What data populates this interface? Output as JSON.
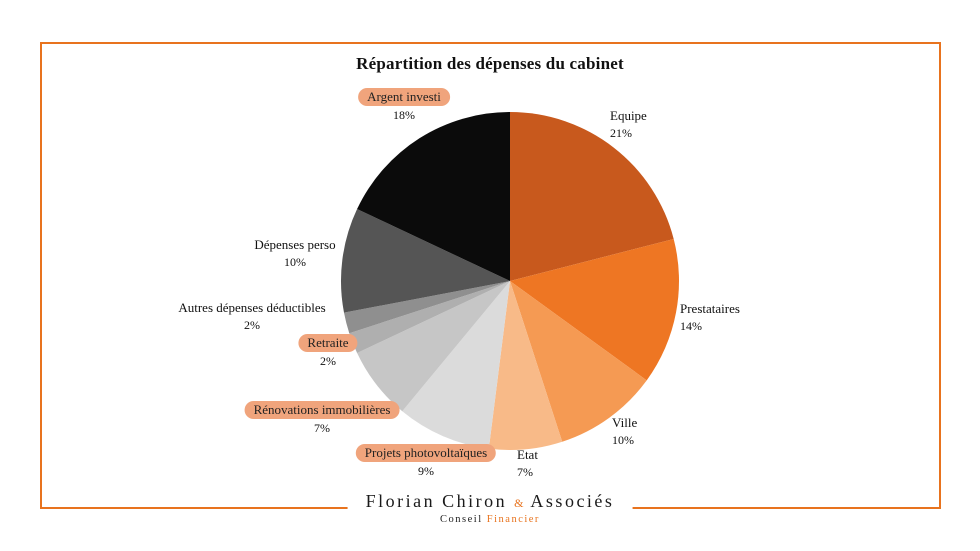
{
  "title": "Répartition des dépenses du cabinet",
  "chart_data": {
    "type": "pie",
    "title": "Répartition des dépenses du cabinet",
    "start_angle_deg": 0,
    "direction": "clockwise",
    "segments": [
      {
        "label": "Equipe",
        "value": 21,
        "pct": "21%",
        "color": "#C8591D",
        "highlighted": false
      },
      {
        "label": "Prestataires",
        "value": 14,
        "pct": "14%",
        "color": "#EE7623",
        "highlighted": false
      },
      {
        "label": "Ville",
        "value": 10,
        "pct": "10%",
        "color": "#F59A53",
        "highlighted": false
      },
      {
        "label": "Etat",
        "value": 7,
        "pct": "7%",
        "color": "#F8BA88",
        "highlighted": false
      },
      {
        "label": "Projets photovoltaïques",
        "value": 9,
        "pct": "9%",
        "color": "#DBDBDB",
        "highlighted": true
      },
      {
        "label": "Rénovations immobilières",
        "value": 7,
        "pct": "7%",
        "color": "#C6C6C6",
        "highlighted": true
      },
      {
        "label": "Retraite",
        "value": 2,
        "pct": "2%",
        "color": "#AFAFAF",
        "highlighted": true
      },
      {
        "label": "Autres dépenses déductibles",
        "value": 2,
        "pct": "2%",
        "color": "#8F8F8F",
        "highlighted": false
      },
      {
        "label": "Dépenses perso",
        "value": 10,
        "pct": "10%",
        "color": "#555555",
        "highlighted": false
      },
      {
        "label": "Argent investi",
        "value": 18,
        "pct": "18%",
        "color": "#0B0B0B",
        "highlighted": true
      }
    ],
    "highlight_pill_color": "#F0A47C",
    "legend_position": "none"
  },
  "footer": {
    "brand_main": "Florian Chiron",
    "brand_amp": "&",
    "brand_suffix": "Associés",
    "tagline_left": "Conseil",
    "tagline_right": "Financier"
  },
  "frame_color": "#E8731E"
}
